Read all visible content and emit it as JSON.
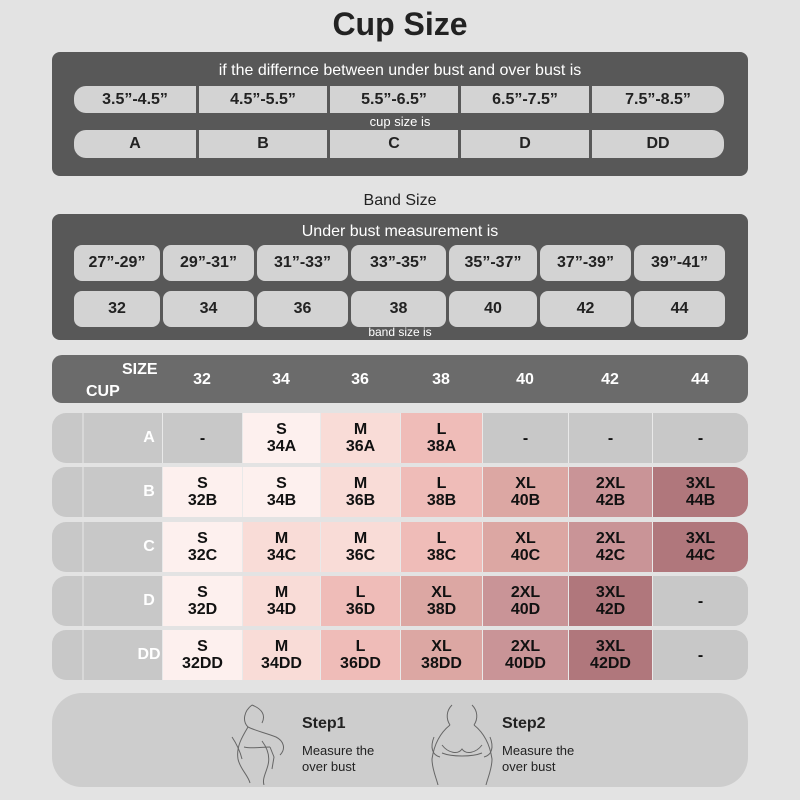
{
  "title": "Cup Size",
  "cup_section": {
    "label": "if the differnce between under bust and over bust is",
    "sublabel": "cup size is",
    "differences": [
      "3.5”-4.5”",
      "4.5”-5.5”",
      "5.5”-6.5”",
      "6.5”-7.5”",
      "7.5”-8.5”"
    ],
    "cups": [
      "A",
      "B",
      "C",
      "D",
      "DD"
    ]
  },
  "band_section": {
    "heading": "Band Size",
    "label": "Under bust measurement is",
    "sublabel": "band size is",
    "measurements": [
      "27”-29”",
      "29”-31”",
      "31”-33”",
      "33”-35”",
      "35”-37”",
      "37”-39”",
      "39”-41”"
    ],
    "bands": [
      "32",
      "34",
      "36",
      "38",
      "40",
      "42",
      "44"
    ]
  },
  "size_table": {
    "size_label": "SIZE",
    "cup_label": "CUP",
    "columns": [
      "32",
      "34",
      "36",
      "38",
      "40",
      "42",
      "44"
    ],
    "rows": [
      {
        "cup": "A",
        "cells": [
          [
            "-"
          ],
          [
            "S",
            "34A"
          ],
          [
            "M",
            "36A"
          ],
          [
            "L",
            "38A"
          ],
          [
            "-"
          ],
          [
            "-"
          ],
          [
            "-"
          ]
        ]
      },
      {
        "cup": "B",
        "cells": [
          [
            "S",
            "32B"
          ],
          [
            "S",
            "34B"
          ],
          [
            "M",
            "36B"
          ],
          [
            "L",
            "38B"
          ],
          [
            "XL",
            "40B"
          ],
          [
            "2XL",
            "42B"
          ],
          [
            "3XL",
            "44B"
          ]
        ]
      },
      {
        "cup": "C",
        "cells": [
          [
            "S",
            "32C"
          ],
          [
            "M",
            "34C"
          ],
          [
            "M",
            "36C"
          ],
          [
            "L",
            "38C"
          ],
          [
            "XL",
            "40C"
          ],
          [
            "2XL",
            "42C"
          ],
          [
            "3XL",
            "44C"
          ]
        ]
      },
      {
        "cup": "D",
        "cells": [
          [
            "S",
            "32D"
          ],
          [
            "M",
            "34D"
          ],
          [
            "L",
            "36D"
          ],
          [
            "XL",
            "38D"
          ],
          [
            "2XL",
            "40D"
          ],
          [
            "3XL",
            "42D"
          ],
          [
            "-"
          ]
        ]
      },
      {
        "cup": "DD",
        "cells": [
          [
            "S",
            "32DD"
          ],
          [
            "M",
            "34DD"
          ],
          [
            "L",
            "36DD"
          ],
          [
            "XL",
            "38DD"
          ],
          [
            "2XL",
            "40DD"
          ],
          [
            "3XL",
            "42DD"
          ],
          [
            "-"
          ]
        ]
      }
    ],
    "colors": {
      "S": "#fdf0ee",
      "M": "#f9dcd7",
      "L": "#efbcb8",
      "XL": "#dca7a3",
      "2XL": "#c99497",
      "3XL": "#b0777c",
      "empty": "#c8c8c8"
    }
  },
  "steps": [
    {
      "title": "Step1",
      "desc": "Measure the over bust"
    },
    {
      "title": "Step2",
      "desc": "Measure the over bust"
    }
  ]
}
